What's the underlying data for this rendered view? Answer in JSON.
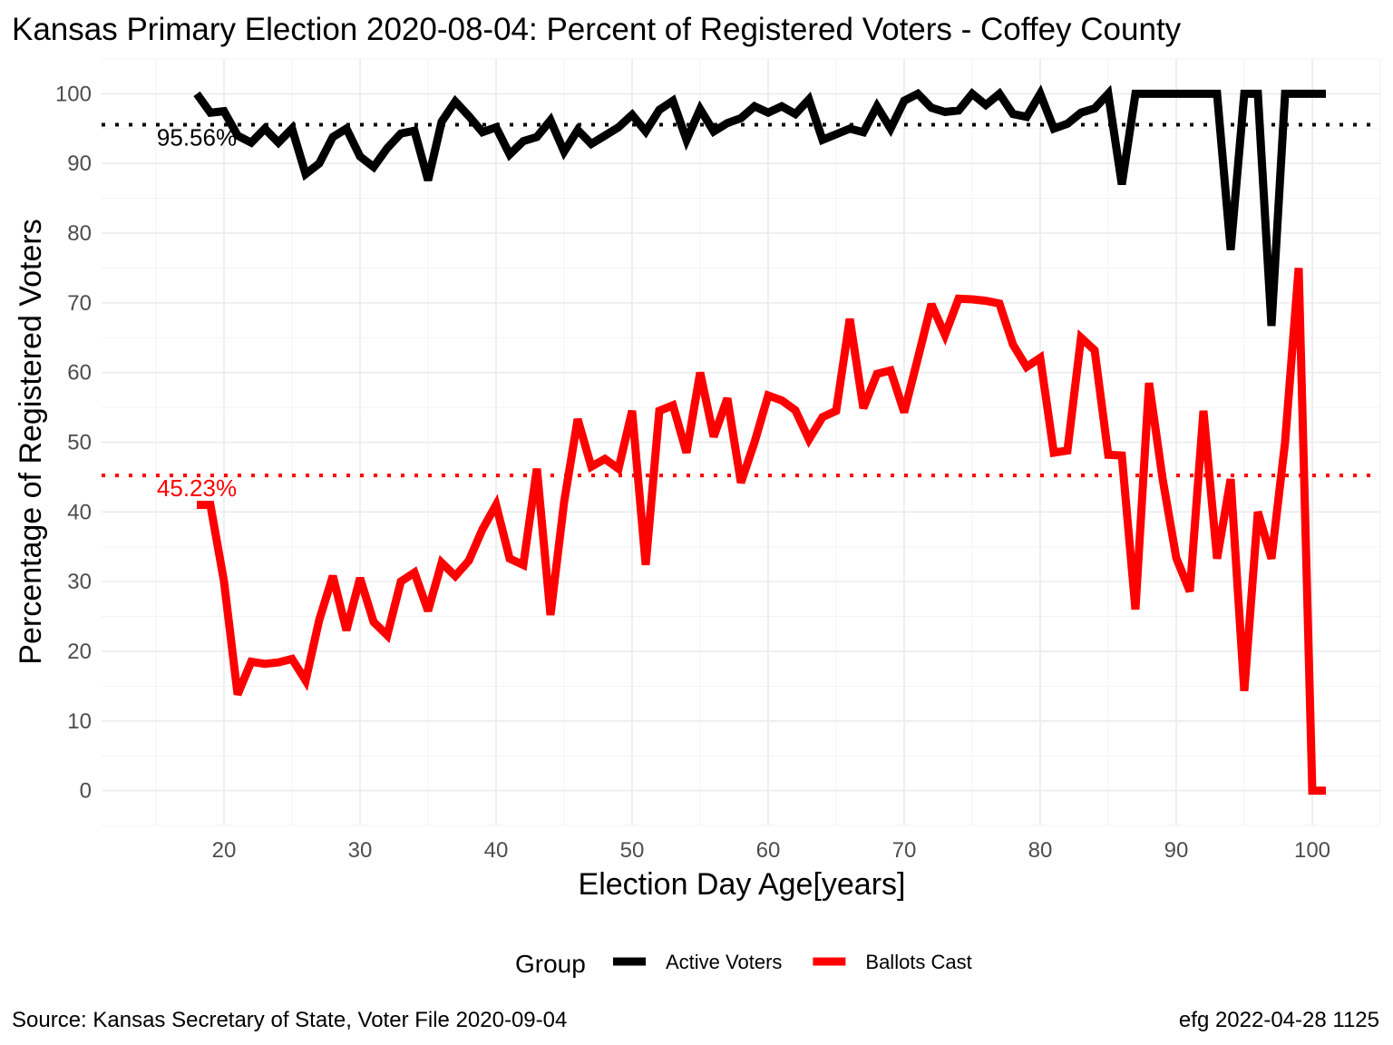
{
  "title": "Kansas Primary Election 2020-08-04:  Percent of Registered Voters - Coffey County",
  "caption_left": "Source:  Kansas Secretary of State, Voter File  2020-09-04",
  "caption_right": "efg 2022-04-28 1125",
  "chart_data": {
    "type": "line",
    "title": "Kansas Primary Election 2020-08-04:  Percent of Registered Voters - Coffey County",
    "xlabel": "Election Day Age[years]",
    "ylabel": "Percentage of Registered Voters",
    "xlim": [
      11,
      105
    ],
    "ylim": [
      -5,
      105
    ],
    "x_ticks": [
      20,
      30,
      40,
      50,
      60,
      70,
      80,
      90,
      100
    ],
    "y_ticks": [
      0,
      10,
      20,
      30,
      40,
      50,
      60,
      70,
      80,
      90,
      100
    ],
    "grid": true,
    "legend": {
      "title": "Group",
      "position": "bottom"
    },
    "series": [
      {
        "name": "Active Voters",
        "color": "#000000",
        "points": [
          [
            18,
            100
          ],
          [
            19,
            97.3
          ],
          [
            20,
            97.5
          ],
          [
            21,
            94
          ],
          [
            22,
            93
          ],
          [
            23,
            95
          ],
          [
            24,
            93
          ],
          [
            25,
            95
          ],
          [
            26,
            88.5
          ],
          [
            27,
            90
          ],
          [
            28,
            93.8
          ],
          [
            29,
            95
          ],
          [
            30,
            91
          ],
          [
            31,
            89.5
          ],
          [
            32,
            92.2
          ],
          [
            33,
            94.3
          ],
          [
            34,
            94.7
          ],
          [
            35,
            87.6
          ],
          [
            36,
            96
          ],
          [
            37,
            98.9
          ],
          [
            38,
            96.8
          ],
          [
            39,
            94.5
          ],
          [
            40,
            95.2
          ],
          [
            41,
            91.3
          ],
          [
            42,
            93.2
          ],
          [
            43,
            93.8
          ],
          [
            44,
            96.2
          ],
          [
            45,
            91.7
          ],
          [
            46,
            94.8
          ],
          [
            47,
            92.8
          ],
          [
            48,
            94
          ],
          [
            49,
            95.2
          ],
          [
            50,
            97
          ],
          [
            51,
            94.6
          ],
          [
            52,
            97.7
          ],
          [
            53,
            99
          ],
          [
            54,
            93.4
          ],
          [
            55,
            97.8
          ],
          [
            56,
            94.6
          ],
          [
            57,
            95.8
          ],
          [
            58,
            96.5
          ],
          [
            59,
            98.2
          ],
          [
            60,
            97.3
          ],
          [
            61,
            98.2
          ],
          [
            62,
            97.1
          ],
          [
            63,
            99.2
          ],
          [
            64,
            93.4
          ],
          [
            65,
            94.2
          ],
          [
            66,
            95
          ],
          [
            67,
            94.5
          ],
          [
            68,
            98.2
          ],
          [
            69,
            95
          ],
          [
            70,
            99
          ],
          [
            71,
            100
          ],
          [
            72,
            98
          ],
          [
            73,
            97.4
          ],
          [
            74,
            97.6
          ],
          [
            75,
            100
          ],
          [
            76,
            98.4
          ],
          [
            77,
            100
          ],
          [
            78,
            97.1
          ],
          [
            79,
            96.7
          ],
          [
            80,
            100
          ],
          [
            81,
            95
          ],
          [
            82,
            95.7
          ],
          [
            83,
            97.3
          ],
          [
            84,
            97.9
          ],
          [
            85,
            100
          ],
          [
            86,
            87
          ],
          [
            87,
            100
          ],
          [
            88,
            100
          ],
          [
            89,
            100
          ],
          [
            90,
            100
          ],
          [
            91,
            100
          ],
          [
            92,
            100
          ],
          [
            93,
            100
          ],
          [
            94,
            77.6
          ],
          [
            95,
            100
          ],
          [
            96,
            100
          ],
          [
            97,
            66.7
          ],
          [
            98,
            100
          ],
          [
            99,
            100
          ],
          [
            100,
            100
          ],
          [
            101,
            100
          ]
        ]
      },
      {
        "name": "Ballots Cast",
        "color": "#ff0000",
        "points": [
          [
            18,
            41
          ],
          [
            19,
            41
          ],
          [
            20,
            30
          ],
          [
            21,
            13.8
          ],
          [
            22,
            18.5
          ],
          [
            23,
            18.2
          ],
          [
            24,
            18.4
          ],
          [
            25,
            18.9
          ],
          [
            26,
            15.8
          ],
          [
            27,
            24.5
          ],
          [
            28,
            30.8
          ],
          [
            29,
            23
          ],
          [
            30,
            30.5
          ],
          [
            31,
            24.2
          ],
          [
            32,
            22.3
          ],
          [
            33,
            30
          ],
          [
            34,
            31.3
          ],
          [
            35,
            25.8
          ],
          [
            36,
            32.7
          ],
          [
            37,
            30.8
          ],
          [
            38,
            33
          ],
          [
            39,
            37.5
          ],
          [
            40,
            41
          ],
          [
            41,
            33.3
          ],
          [
            42,
            32.4
          ],
          [
            43,
            46.2
          ],
          [
            44,
            25.2
          ],
          [
            45,
            41.4
          ],
          [
            46,
            53.3
          ],
          [
            47,
            46.5
          ],
          [
            48,
            47.6
          ],
          [
            49,
            46.2
          ],
          [
            50,
            54.5
          ],
          [
            51,
            32.4
          ],
          [
            52,
            54.5
          ],
          [
            53,
            55.3
          ],
          [
            54,
            48.5
          ],
          [
            55,
            60
          ],
          [
            56,
            50.8
          ],
          [
            57,
            56.3
          ],
          [
            58,
            44.2
          ],
          [
            59,
            50
          ],
          [
            60,
            56.7
          ],
          [
            61,
            56
          ],
          [
            62,
            54.6
          ],
          [
            63,
            50.4
          ],
          [
            64,
            53.6
          ],
          [
            65,
            54.5
          ],
          [
            66,
            67.7
          ],
          [
            67,
            54.9
          ],
          [
            68,
            59.8
          ],
          [
            69,
            60.3
          ],
          [
            70,
            54.3
          ],
          [
            71,
            62
          ],
          [
            72,
            69.8
          ],
          [
            73,
            65.4
          ],
          [
            74,
            70.6
          ],
          [
            75,
            70.5
          ],
          [
            76,
            70.3
          ],
          [
            77,
            69.9
          ],
          [
            78,
            64
          ],
          [
            79,
            60.8
          ],
          [
            80,
            62.1
          ],
          [
            81,
            48.5
          ],
          [
            82,
            48.8
          ],
          [
            83,
            65
          ],
          [
            84,
            63.2
          ],
          [
            85,
            48.2
          ],
          [
            86,
            48.1
          ],
          [
            87,
            26
          ],
          [
            88,
            58.5
          ],
          [
            89,
            44.7
          ],
          [
            90,
            33.4
          ],
          [
            91,
            28.6
          ],
          [
            92,
            54.5
          ],
          [
            93,
            33.3
          ],
          [
            94,
            44.7
          ],
          [
            95,
            14.3
          ],
          [
            96,
            40
          ],
          [
            97,
            33.3
          ],
          [
            98,
            50
          ],
          [
            99,
            75
          ],
          [
            100,
            0
          ],
          [
            101,
            0
          ]
        ]
      }
    ],
    "reference_lines": [
      {
        "series": "Active Voters",
        "y": 95.56,
        "label": "95.56%",
        "color": "#000000",
        "style": "dotted"
      },
      {
        "series": "Ballots Cast",
        "y": 45.23,
        "label": "45.23%",
        "color": "#ff0000",
        "style": "dotted"
      }
    ]
  }
}
